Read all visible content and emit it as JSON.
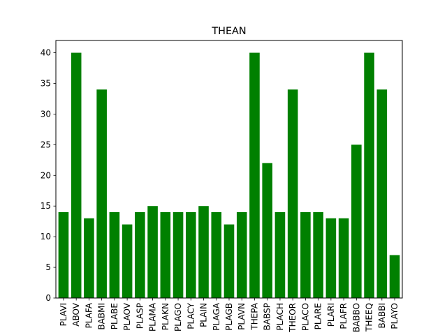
{
  "chart_data": {
    "type": "bar",
    "title": "THEAN",
    "xlabel": "",
    "ylabel": "",
    "categories": [
      "PLAVI",
      "ABOV",
      "PLAFA",
      "BABMI",
      "PLABE",
      "PLAOV",
      "PLASP",
      "PLAMA",
      "PLAKN",
      "PLAGO",
      "PLACY",
      "PLAIN",
      "PLAGA",
      "PLAGB",
      "PLAVN",
      "THEPA",
      "BABSP",
      "PLACH",
      "THEOR",
      "PLACO",
      "PLARE",
      "PLARI",
      "PLAFR",
      "BABBO",
      "THEEQ",
      "BABBI",
      "PLAYO"
    ],
    "values": [
      14,
      40,
      13,
      34,
      14,
      12,
      14,
      15,
      14,
      14,
      14,
      15,
      14,
      12,
      14,
      40,
      22,
      14,
      34,
      14,
      14,
      13,
      13,
      25,
      40,
      34,
      7
    ],
    "ylim": [
      0,
      42
    ],
    "yticks": [
      0,
      5,
      10,
      15,
      20,
      25,
      30,
      35,
      40
    ],
    "bar_color": "#008000",
    "grid": false,
    "legend": "none"
  }
}
